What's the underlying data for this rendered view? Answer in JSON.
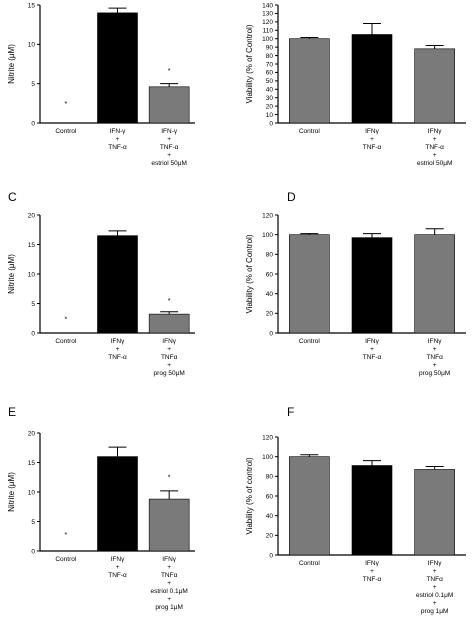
{
  "colors": {
    "black_bar": "#000000",
    "gray_bar": "#7a7a7a"
  },
  "chart_data": [
    {
      "type": "bar",
      "letter": "",
      "ylabel": "Nitrite (μM)",
      "ylim": [
        0,
        15
      ],
      "yticks": [
        0,
        5,
        10,
        15
      ],
      "categories": [
        [
          "Control"
        ],
        [
          "IFN-γ",
          "+",
          "TNF-α"
        ],
        [
          "IFN-γ",
          "+",
          "TNF-α",
          "+",
          "estriol 50μM"
        ]
      ],
      "values": [
        0,
        14,
        4.6
      ],
      "errors": [
        0,
        0.6,
        0.4
      ],
      "bar_colors": [
        "none",
        "black",
        "gray"
      ],
      "annotations": [
        {
          "index": 0,
          "text": "*",
          "y": 2.4
        },
        {
          "index": 2,
          "text": "*",
          "y": 6.6
        }
      ]
    },
    {
      "type": "bar",
      "letter": "",
      "ylabel": "Viability (% of Control)",
      "ylim": [
        0,
        140
      ],
      "yticks": [
        0,
        10,
        20,
        30,
        40,
        50,
        60,
        70,
        80,
        90,
        100,
        110,
        120,
        130,
        140
      ],
      "categories": [
        [
          "Control"
        ],
        [
          "IFNγ",
          "+",
          "TNF-α"
        ],
        [
          "IFNγ",
          "+",
          "TNF-α",
          "+",
          "estriol 50μM"
        ]
      ],
      "values": [
        100,
        105,
        88
      ],
      "errors": [
        1.5,
        13,
        4
      ],
      "bar_colors": [
        "gray",
        "black",
        "gray"
      ],
      "annotations": []
    },
    {
      "type": "bar",
      "letter": "C",
      "ylabel": "Nitrite (μM)",
      "ylim": [
        0,
        20
      ],
      "yticks": [
        0,
        5,
        10,
        15,
        20
      ],
      "categories": [
        [
          "Control"
        ],
        [
          "IFNγ",
          "+",
          "TNF-α"
        ],
        [
          "IFNγ",
          "+",
          "TNFα",
          "+",
          "prog 50μM"
        ]
      ],
      "values": [
        0,
        16.5,
        3.2
      ],
      "errors": [
        0,
        0.8,
        0.4
      ],
      "bar_colors": [
        "none",
        "black",
        "gray"
      ],
      "annotations": [
        {
          "index": 0,
          "text": "*",
          "y": 2.3
        },
        {
          "index": 2,
          "text": "*",
          "y": 5.4
        }
      ]
    },
    {
      "type": "bar",
      "letter": "D",
      "ylabel": "Viability (% of Control)",
      "ylim": [
        0,
        120
      ],
      "yticks": [
        0,
        20,
        40,
        60,
        80,
        100,
        120
      ],
      "categories": [
        [
          "Control"
        ],
        [
          "IFNγ",
          "+",
          "TNF-α"
        ],
        [
          "IFNγ",
          "+",
          "TNFα",
          "+",
          "prog 50μM"
        ]
      ],
      "values": [
        100,
        97,
        100
      ],
      "errors": [
        1,
        4,
        6
      ],
      "bar_colors": [
        "gray",
        "black",
        "gray"
      ],
      "annotations": []
    },
    {
      "type": "bar",
      "letter": "E",
      "ylabel": "Nitrite (μM)",
      "ylim": [
        0,
        20
      ],
      "yticks": [
        0,
        5,
        10,
        15,
        20
      ],
      "categories": [
        [
          "Control"
        ],
        [
          "IFNγ",
          "+",
          "TNF-α"
        ],
        [
          "IFNγ",
          "+",
          "TNFα",
          "+",
          "estriol 0.1μM",
          "+",
          "prog 1μM"
        ]
      ],
      "values": [
        0,
        16,
        8.8
      ],
      "errors": [
        0,
        1.6,
        1.4
      ],
      "bar_colors": [
        "none",
        "black",
        "gray"
      ],
      "annotations": [
        {
          "index": 0,
          "text": "*",
          "y": 2.7
        },
        {
          "index": 2,
          "text": "*",
          "y": 12.5
        }
      ]
    },
    {
      "type": "bar",
      "letter": "F",
      "ylabel": "Viability (% of control)",
      "ylim": [
        0,
        120
      ],
      "yticks": [
        0,
        20,
        40,
        60,
        80,
        100,
        120
      ],
      "categories": [
        [
          "Control"
        ],
        [
          "IFNγ",
          "+",
          "TNF-α"
        ],
        [
          "IFNγ",
          "+",
          "TNFα",
          "+",
          "estriol 0.1μM",
          "+",
          "prog 1μM"
        ]
      ],
      "values": [
        100,
        91,
        87
      ],
      "errors": [
        2,
        5,
        3
      ],
      "bar_colors": [
        "gray",
        "black",
        "gray"
      ],
      "annotations": []
    }
  ]
}
